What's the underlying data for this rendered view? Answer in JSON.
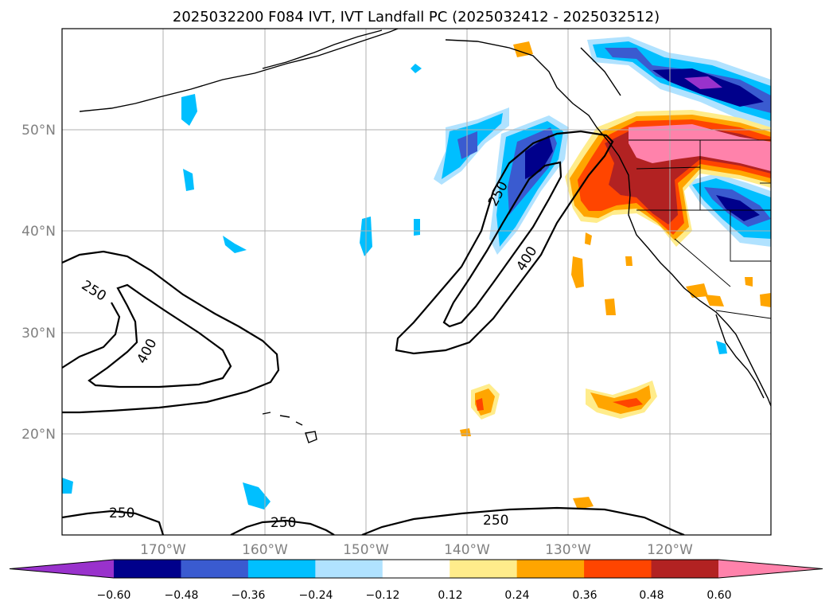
{
  "title": "2025032200 F084 IVT, IVT Landfall PC (2025032412 - 2025032512)",
  "lat_labels": [
    "50°N",
    "40°N",
    "30°N",
    "20°N"
  ],
  "lon_labels": [
    "170°W",
    "160°W",
    "150°W",
    "140°W",
    "130°W",
    "120°W"
  ],
  "colorbar": {
    "labels": [
      "−0.60",
      "−0.48",
      "−0.36",
      "−0.24",
      "−0.12",
      "0.12",
      "0.24",
      "0.36",
      "0.48",
      "0.60"
    ],
    "colors": [
      "#9932cc",
      "#00008b",
      "#3a5bd0",
      "#00bfff",
      "#b0e2ff",
      "#ffffff",
      "#ffec8b",
      "#ffa500",
      "#ff4500",
      "#b22222",
      "#ff82ab"
    ]
  },
  "contour_labels": [
    "250",
    "400",
    "250",
    "400",
    "250",
    "250",
    "250"
  ],
  "map": {
    "lon_range": [
      -180,
      -110
    ],
    "lat_range": [
      10,
      60
    ],
    "gridlines": true
  }
}
